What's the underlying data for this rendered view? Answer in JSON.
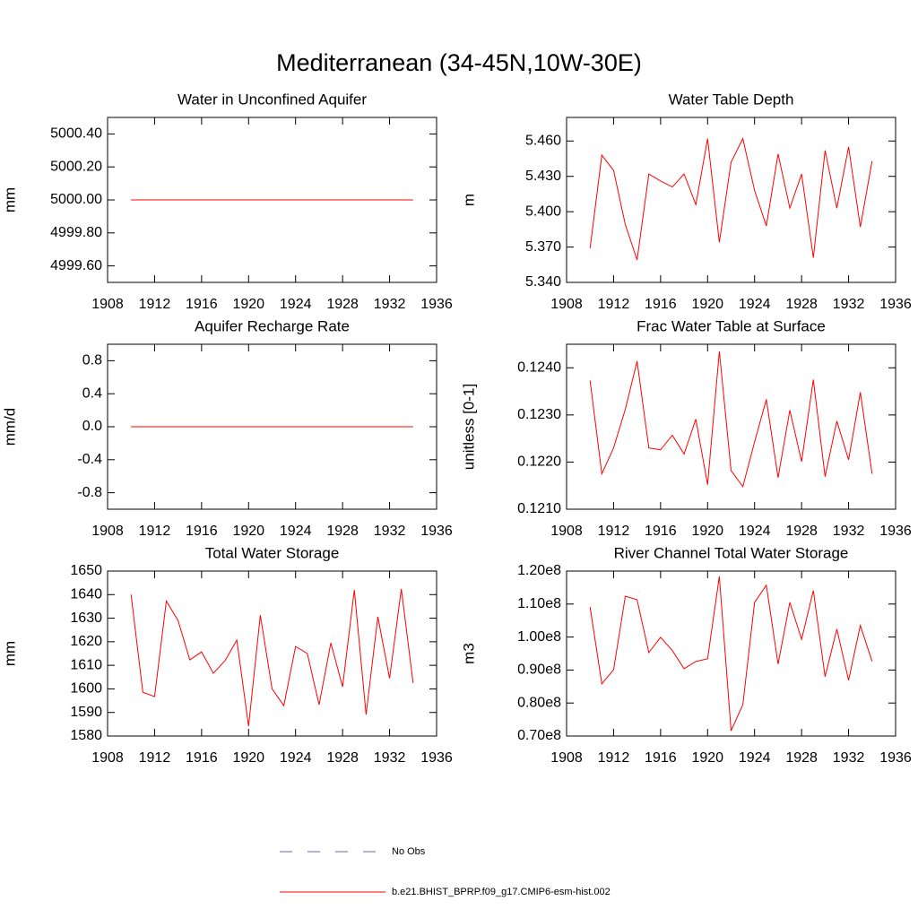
{
  "title": "Mediterranean (34-45N,10W-30E)",
  "chart_data": [
    {
      "type": "line",
      "title": "Water in Unconfined Aquifer",
      "ylabel": "mm",
      "x": [
        1910,
        1911,
        1912,
        1913,
        1914,
        1915,
        1916,
        1917,
        1918,
        1919,
        1920,
        1921,
        1922,
        1923,
        1924,
        1925,
        1926,
        1927,
        1928,
        1929,
        1930,
        1931,
        1932,
        1933,
        1934
      ],
      "xlim": [
        1908,
        1936
      ],
      "xticks": [
        1908,
        1912,
        1916,
        1920,
        1924,
        1928,
        1932,
        1936
      ],
      "ylim": [
        4999.5,
        5000.5
      ],
      "yticks": [
        {
          "value": 4999.6,
          "label": "4999.60"
        },
        {
          "value": 4999.8,
          "label": "4999.80"
        },
        {
          "value": 5000,
          "label": "5000.00"
        },
        {
          "value": 5000.2,
          "label": "5000.20"
        },
        {
          "value": 5000.4,
          "label": "5000.40"
        }
      ],
      "series": [
        {
          "color": "#ff0000",
          "values": [
            5000,
            5000,
            5000,
            5000,
            5000,
            5000,
            5000,
            5000,
            5000,
            5000,
            5000,
            5000,
            5000,
            5000,
            5000,
            5000,
            5000,
            5000,
            5000,
            5000,
            5000,
            5000,
            5000,
            5000,
            5000
          ]
        }
      ]
    },
    {
      "type": "line",
      "title": "Water Table Depth",
      "ylabel": "m",
      "x": [
        1910,
        1911,
        1912,
        1913,
        1914,
        1915,
        1916,
        1917,
        1918,
        1919,
        1920,
        1921,
        1922,
        1923,
        1924,
        1925,
        1926,
        1927,
        1928,
        1929,
        1930,
        1931,
        1932,
        1933,
        1934
      ],
      "xlim": [
        1908,
        1936
      ],
      "xticks": [
        1908,
        1912,
        1916,
        1920,
        1924,
        1928,
        1932,
        1936
      ],
      "ylim": [
        5.34,
        5.48
      ],
      "yticks": [
        {
          "value": 5.34,
          "label": "5.340"
        },
        {
          "value": 5.37,
          "label": "5.370"
        },
        {
          "value": 5.4,
          "label": "5.400"
        },
        {
          "value": 5.43,
          "label": "5.430"
        },
        {
          "value": 5.46,
          "label": "5.460"
        }
      ],
      "series": [
        {
          "color": "#ff0000",
          "values": [
            5.369,
            5.448,
            5.435,
            5.389,
            5.359,
            5.432,
            5.426,
            5.421,
            5.432,
            5.406,
            5.462,
            5.374,
            5.442,
            5.462,
            5.418,
            5.388,
            5.449,
            5.403,
            5.432,
            5.361,
            5.452,
            5.403,
            5.455,
            5.387,
            5.443
          ]
        }
      ]
    },
    {
      "type": "line",
      "title": "Aquifer Recharge Rate",
      "ylabel": "mm/d",
      "x": [
        1910,
        1911,
        1912,
        1913,
        1914,
        1915,
        1916,
        1917,
        1918,
        1919,
        1920,
        1921,
        1922,
        1923,
        1924,
        1925,
        1926,
        1927,
        1928,
        1929,
        1930,
        1931,
        1932,
        1933,
        1934
      ],
      "xlim": [
        1908,
        1936
      ],
      "xticks": [
        1908,
        1912,
        1916,
        1920,
        1924,
        1928,
        1932,
        1936
      ],
      "ylim": [
        -1,
        1
      ],
      "yticks": [
        -0.8,
        -0.4,
        {
          "value": 0,
          "label": "0.0"
        },
        0.4,
        0.8
      ],
      "series": [
        {
          "color": "#ff0000",
          "values": [
            0,
            0,
            0,
            0,
            0,
            0,
            0,
            0,
            0,
            0,
            0,
            0,
            0,
            0,
            0,
            0,
            0,
            0,
            0,
            0,
            0,
            0,
            0,
            0,
            0
          ]
        }
      ]
    },
    {
      "type": "line",
      "title": "Frac Water Table at Surface",
      "ylabel": "unitless [0-1]",
      "x": [
        1910,
        1911,
        1912,
        1913,
        1914,
        1915,
        1916,
        1917,
        1918,
        1919,
        1920,
        1921,
        1922,
        1923,
        1924,
        1925,
        1926,
        1927,
        1928,
        1929,
        1930,
        1931,
        1932,
        1933,
        1934
      ],
      "xlim": [
        1908,
        1936
      ],
      "xticks": [
        1908,
        1912,
        1916,
        1920,
        1924,
        1928,
        1932,
        1936
      ],
      "ylim": [
        0.121,
        0.1245
      ],
      "yticks": [
        {
          "value": 0.121,
          "label": "0.1210"
        },
        {
          "value": 0.122,
          "label": "0.1220"
        },
        {
          "value": 0.123,
          "label": "0.1230"
        },
        {
          "value": 0.124,
          "label": "0.1240"
        }
      ],
      "series": [
        {
          "color": "#ff0000",
          "values": [
            0.12373,
            0.12175,
            0.1223,
            0.12312,
            0.12414,
            0.1223,
            0.12226,
            0.12257,
            0.12217,
            0.12291,
            0.12152,
            0.12435,
            0.12182,
            0.12148,
            0.12243,
            0.12333,
            0.12167,
            0.1231,
            0.12201,
            0.12375,
            0.12169,
            0.12287,
            0.12205,
            0.12348,
            0.12175
          ]
        }
      ]
    },
    {
      "type": "line",
      "title": "Total Water Storage",
      "ylabel": "mm",
      "x": [
        1910,
        1911,
        1912,
        1913,
        1914,
        1915,
        1916,
        1917,
        1918,
        1919,
        1920,
        1921,
        1922,
        1923,
        1924,
        1925,
        1926,
        1927,
        1928,
        1929,
        1930,
        1931,
        1932,
        1933,
        1934
      ],
      "xlim": [
        1908,
        1936
      ],
      "xticks": [
        1908,
        1912,
        1916,
        1920,
        1924,
        1928,
        1932,
        1936
      ],
      "ylim": [
        1580,
        1650
      ],
      "yticks": [
        1580,
        1590,
        1600,
        1610,
        1620,
        1630,
        1640,
        1650
      ],
      "series": [
        {
          "color": "#ff0000",
          "values": [
            1640,
            1598.6,
            1596.7,
            1637.3,
            1629,
            1612.3,
            1615.7,
            1606.6,
            1612,
            1620.7,
            1584.2,
            1631.3,
            1600,
            1592.9,
            1618,
            1615,
            1593.3,
            1619.5,
            1600.9,
            1642,
            1589.1,
            1630.6,
            1604.5,
            1642.4,
            1602.5
          ]
        }
      ]
    },
    {
      "type": "line",
      "title": "River Channel Total Water Storage",
      "ylabel": "m3",
      "x": [
        1910,
        1911,
        1912,
        1913,
        1914,
        1915,
        1916,
        1917,
        1918,
        1919,
        1920,
        1921,
        1922,
        1923,
        1924,
        1925,
        1926,
        1927,
        1928,
        1929,
        1930,
        1931,
        1932,
        1933,
        1934
      ],
      "xlim": [
        1908,
        1936
      ],
      "xticks": [
        1908,
        1912,
        1916,
        1920,
        1924,
        1928,
        1932,
        1936
      ],
      "ylim": [
        70000000,
        120000000
      ],
      "yticks": [
        {
          "value": 70000000,
          "label": "0.70e8"
        },
        {
          "value": 80000000,
          "label": "0.80e8"
        },
        {
          "value": 90000000,
          "label": "0.90e8"
        },
        {
          "value": 100000000,
          "label": "1.00e8"
        },
        {
          "value": 110000000,
          "label": "1.10e8"
        },
        {
          "value": 120000000,
          "label": "1.20e8"
        }
      ],
      "series": [
        {
          "color": "#ff0000",
          "values": [
            109100000,
            85800000,
            90100000,
            112400000,
            111300000,
            95300000,
            99900000,
            95900000,
            90400000,
            92600000,
            93400000,
            118400000,
            71600000,
            79500000,
            110500000,
            115700000,
            91800000,
            110500000,
            99300000,
            114100000,
            88000000,
            102400000,
            86900000,
            103500000,
            92600000
          ]
        }
      ]
    }
  ],
  "legend": [
    {
      "name": "No Obs",
      "color": "#5a6ab8",
      "dash": true
    },
    {
      "name": "b.e21.BHIST_BPRP.f09_g17.CMIP6-esm-hist.002",
      "color": "#ff0000",
      "dash": false
    }
  ]
}
